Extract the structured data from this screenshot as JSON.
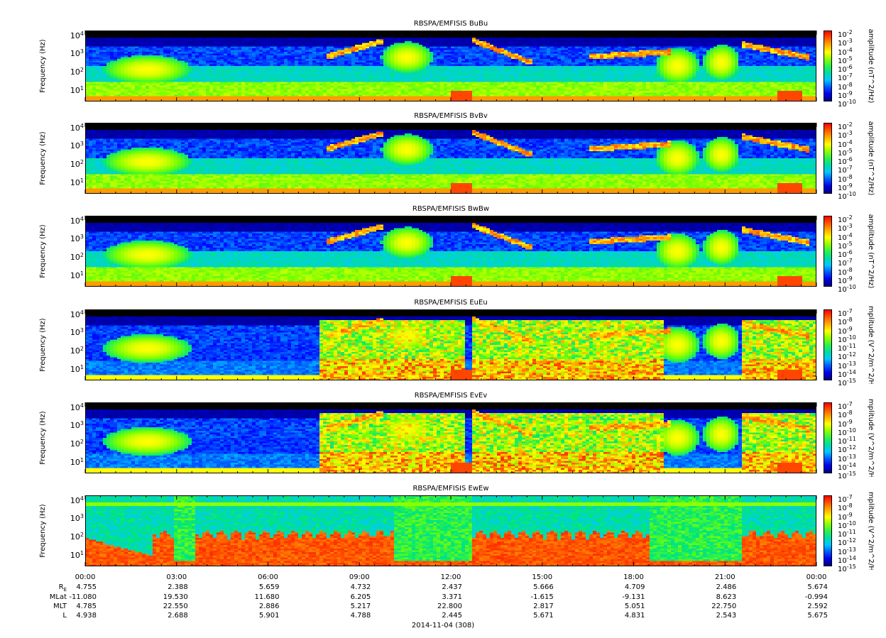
{
  "chart_data": [
    {
      "type": "heatmap",
      "title": "RBSPA/EMFISIS  BuBu",
      "ylabel": "Frequency (Hz)",
      "yscale": "log",
      "ylim": [
        2,
        15000
      ],
      "yticks": [
        "10",
        "10",
        "10",
        "10"
      ],
      "yticks_exp": [
        "4",
        "3",
        "2",
        "1"
      ],
      "colorbar": {
        "label": "amplitude (nT^2/Hz)",
        "scale": "log",
        "range": [
          1e-10,
          0.01
        ],
        "ticks": [
          "10",
          "10",
          "10",
          "10",
          "10",
          "10",
          "10",
          "10",
          "10"
        ],
        "ticks_exp": [
          "-2",
          "-3",
          "-4",
          "-5",
          "-6",
          "-7",
          "-8",
          "-9",
          "-10"
        ]
      }
    },
    {
      "type": "heatmap",
      "title": "RBSPA/EMFISIS  BvBv",
      "ylabel": "Frequency (Hz)",
      "yscale": "log",
      "ylim": [
        2,
        15000
      ],
      "yticks": [
        "10",
        "10",
        "10",
        "10"
      ],
      "yticks_exp": [
        "4",
        "3",
        "2",
        "1"
      ],
      "colorbar": {
        "label": "amplitude (nT^2/Hz)",
        "scale": "log",
        "range": [
          1e-10,
          0.01
        ],
        "ticks": [
          "10",
          "10",
          "10",
          "10",
          "10",
          "10",
          "10",
          "10",
          "10"
        ],
        "ticks_exp": [
          "-2",
          "-3",
          "-4",
          "-5",
          "-6",
          "-7",
          "-8",
          "-9",
          "-10"
        ]
      }
    },
    {
      "type": "heatmap",
      "title": "RBSPA/EMFISIS  BwBw",
      "ylabel": "Frequency (Hz)",
      "yscale": "log",
      "ylim": [
        2,
        15000
      ],
      "yticks": [
        "10",
        "10",
        "10",
        "10"
      ],
      "yticks_exp": [
        "4",
        "3",
        "2",
        "1"
      ],
      "colorbar": {
        "label": "amplitude (nT^2/Hz)",
        "scale": "log",
        "range": [
          1e-10,
          0.01
        ],
        "ticks": [
          "10",
          "10",
          "10",
          "10",
          "10",
          "10",
          "10",
          "10",
          "10"
        ],
        "ticks_exp": [
          "-2",
          "-3",
          "-4",
          "-5",
          "-6",
          "-7",
          "-8",
          "-9",
          "-10"
        ]
      }
    },
    {
      "type": "heatmap",
      "title": "RBSPA/EMFISIS  EuEu",
      "ylabel": "Frequency (Hz)",
      "yscale": "log",
      "ylim": [
        2,
        15000
      ],
      "yticks": [
        "10",
        "10",
        "10",
        "10"
      ],
      "yticks_exp": [
        "4",
        "3",
        "2",
        "1"
      ],
      "colorbar": {
        "label": "mplitude (V^2/m^2/H",
        "scale": "log",
        "range": [
          1e-15,
          1e-07
        ],
        "ticks": [
          "10",
          "10",
          "10",
          "10",
          "10",
          "10",
          "10",
          "10",
          "10"
        ],
        "ticks_exp": [
          "-7",
          "-8",
          "-9",
          "-10",
          "-11",
          "-12",
          "-13",
          "-14",
          "-15"
        ]
      }
    },
    {
      "type": "heatmap",
      "title": "RBSPA/EMFISIS  EvEv",
      "ylabel": "Frequency (Hz)",
      "yscale": "log",
      "ylim": [
        2,
        15000
      ],
      "yticks": [
        "10",
        "10",
        "10",
        "10"
      ],
      "yticks_exp": [
        "4",
        "3",
        "2",
        "1"
      ],
      "colorbar": {
        "label": "mplitude (V^2/m^2/H",
        "scale": "log",
        "range": [
          1e-15,
          1e-07
        ],
        "ticks": [
          "10",
          "10",
          "10",
          "10",
          "10",
          "10",
          "10",
          "10",
          "10"
        ],
        "ticks_exp": [
          "-7",
          "-8",
          "-9",
          "-10",
          "-11",
          "-12",
          "-13",
          "-14",
          "-15"
        ]
      }
    },
    {
      "type": "heatmap",
      "title": "RBSPA/EMFISIS  EwEw",
      "ylabel": "Frequency (Hz)",
      "yscale": "log",
      "ylim": [
        2,
        15000
      ],
      "yticks": [
        "10",
        "10",
        "10",
        "10"
      ],
      "yticks_exp": [
        "4",
        "3",
        "2",
        "1"
      ],
      "colorbar": {
        "label": "mplitude (V^2/m^2/H",
        "scale": "log",
        "range": [
          1e-15,
          1e-07
        ],
        "ticks": [
          "10",
          "10",
          "10",
          "10",
          "10",
          "10",
          "10",
          "10",
          "10"
        ],
        "ticks_exp": [
          "-7",
          "-8",
          "-9",
          "-10",
          "-11",
          "-12",
          "-13",
          "-14",
          "-15"
        ]
      }
    }
  ],
  "xaxis": {
    "ticks": [
      "00:00",
      "03:00",
      "06:00",
      "09:00",
      "12:00",
      "15:00",
      "18:00",
      "21:00",
      "00:00"
    ],
    "date_label": "2014-11-04 (308)"
  },
  "ephemeris": {
    "rows": [
      {
        "name": "R",
        "name_sub": "E",
        "values": [
          "4.755",
          "2.388",
          "5.659",
          "4.732",
          "2.437",
          "5.666",
          "4.709",
          "2.486",
          "5.674"
        ]
      },
      {
        "name": "MLat",
        "name_sub": "",
        "values": [
          "-11.080",
          "19.530",
          "11.680",
          "6.205",
          "3.371",
          "-1.615",
          "-9.131",
          "8.623",
          "-0.994"
        ]
      },
      {
        "name": "MLT",
        "name_sub": "",
        "values": [
          "4.785",
          "22.550",
          "2.886",
          "5.217",
          "22.800",
          "2.817",
          "5.051",
          "22.750",
          "2.592"
        ]
      },
      {
        "name": "L",
        "name_sub": "",
        "values": [
          "4.938",
          "2.688",
          "5.901",
          "4.788",
          "2.445",
          "5.671",
          "4.831",
          "2.543",
          "5.675"
        ]
      }
    ]
  }
}
